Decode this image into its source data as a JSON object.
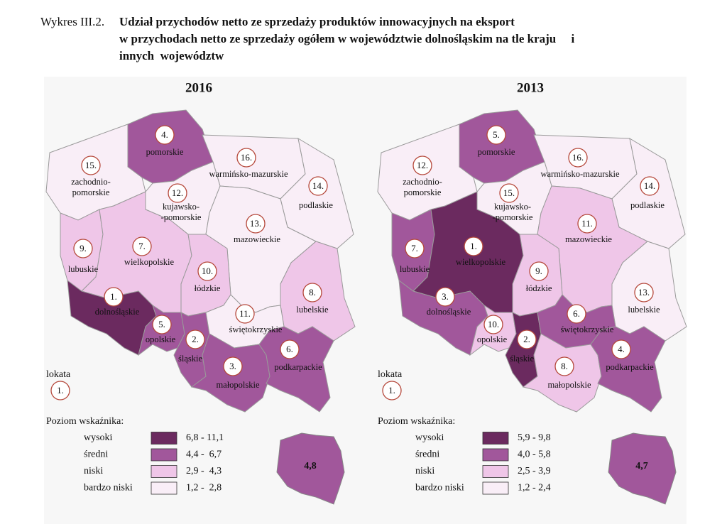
{
  "title": {
    "prefix": "Wykres III.2.",
    "lines": [
      "Udział przychodów netto ze sprzedaży produktów innowacyjnych na eksport",
      "w przychodach netto ze sprzedaży ogółem w województwie dolnośląskim na tle kraju     i",
      "innych  województw"
    ]
  },
  "maps": [
    {
      "year": "2016",
      "regions": [
        {
          "name": [
            "pomorskie"
          ],
          "rank": "4.",
          "level": 1
        },
        {
          "name": [
            "zachodnio-",
            "pomorskie"
          ],
          "rank": "15.",
          "level": 3
        },
        {
          "name": [
            "warmińsko-mazurskie"
          ],
          "rank": "16.",
          "level": 3
        },
        {
          "name": [
            "podlaskie"
          ],
          "rank": "14.",
          "level": 3
        },
        {
          "name": [
            "kujawsko-",
            "-pomorskie"
          ],
          "rank": "12.",
          "level": 3
        },
        {
          "name": [
            "lubuskie"
          ],
          "rank": "9.",
          "level": 2
        },
        {
          "name": [
            "wielkopolskie"
          ],
          "rank": "7.",
          "level": 2
        },
        {
          "name": [
            "mazowieckie"
          ],
          "rank": "13.",
          "level": 3
        },
        {
          "name": [
            "łódzkie"
          ],
          "rank": "10.",
          "level": 2
        },
        {
          "name": [
            "lubelskie"
          ],
          "rank": "8.",
          "level": 2
        },
        {
          "name": [
            "dolnośląskie"
          ],
          "rank": "1.",
          "level": 0
        },
        {
          "name": [
            "opolskie"
          ],
          "rank": "5.",
          "level": 1
        },
        {
          "name": [
            "śląskie"
          ],
          "rank": "2.",
          "level": 1
        },
        {
          "name": [
            "świętokrzyskie"
          ],
          "rank": "11.",
          "level": 3
        },
        {
          "name": [
            "małopolskie"
          ],
          "rank": "3.",
          "level": 1
        },
        {
          "name": [
            "podkarpackie"
          ],
          "rank": "6.",
          "level": 1
        }
      ],
      "rank_legend": {
        "label": "lokata",
        "example": "1."
      },
      "legend_title": "Poziom wskaźnika:",
      "legend": [
        {
          "label": "wysoki",
          "range": "6,8 - 11,1",
          "color": "#6b2a5f"
        },
        {
          "label": "średni",
          "range": "4,4 -  6,7",
          "color": "#a1579b"
        },
        {
          "label": "niski",
          "range": "2,9 -  4,3",
          "color": "#efc6e8"
        },
        {
          "label": "bardzo niski",
          "range": "1,2 -  2,8",
          "color": "#f9eef7"
        }
      ],
      "country": {
        "value": "4,8",
        "color": "#a1579b"
      }
    },
    {
      "year": "2013",
      "regions": [
        {
          "name": [
            "pomorskie"
          ],
          "rank": "5.",
          "level": 1
        },
        {
          "name": [
            "zachodnio-",
            "pomorskie"
          ],
          "rank": "12.",
          "level": 3
        },
        {
          "name": [
            "warmińsko-mazurskie"
          ],
          "rank": "16.",
          "level": 3
        },
        {
          "name": [
            "podlaskie"
          ],
          "rank": "14.",
          "level": 3
        },
        {
          "name": [
            "kujawsko-",
            "-pomorskie"
          ],
          "rank": "15.",
          "level": 3
        },
        {
          "name": [
            "lubuskie"
          ],
          "rank": "7.",
          "level": 1
        },
        {
          "name": [
            "wielkopolskie"
          ],
          "rank": "1.",
          "level": 0
        },
        {
          "name": [
            "mazowieckie"
          ],
          "rank": "11.",
          "level": 2
        },
        {
          "name": [
            "łódzkie"
          ],
          "rank": "9.",
          "level": 2
        },
        {
          "name": [
            "lubelskie"
          ],
          "rank": "13.",
          "level": 3
        },
        {
          "name": [
            "dolnośląskie"
          ],
          "rank": "3.",
          "level": 1
        },
        {
          "name": [
            "opolskie"
          ],
          "rank": "10.",
          "level": 2
        },
        {
          "name": [
            "śląskie"
          ],
          "rank": "2.",
          "level": 0
        },
        {
          "name": [
            "świętokrzyskie"
          ],
          "rank": "6.",
          "level": 1
        },
        {
          "name": [
            "małopolskie"
          ],
          "rank": "8.",
          "level": 2
        },
        {
          "name": [
            "podkarpackie"
          ],
          "rank": "4.",
          "level": 1
        }
      ],
      "rank_legend": {
        "label": "lokata",
        "example": "1."
      },
      "legend_title": "Poziom wskaźnika:",
      "legend": [
        {
          "label": "wysoki",
          "range": "5,9 - 9,8",
          "color": "#6b2a5f"
        },
        {
          "label": "średni",
          "range": "4,0 - 5,8",
          "color": "#a1579b"
        },
        {
          "label": "niski",
          "range": "2,5 - 3,9",
          "color": "#efc6e8"
        },
        {
          "label": "bardzo niski",
          "range": "1,2 - 2,4",
          "color": "#f9eef7"
        }
      ],
      "country": {
        "value": "4,7",
        "color": "#a1579b"
      }
    }
  ]
}
